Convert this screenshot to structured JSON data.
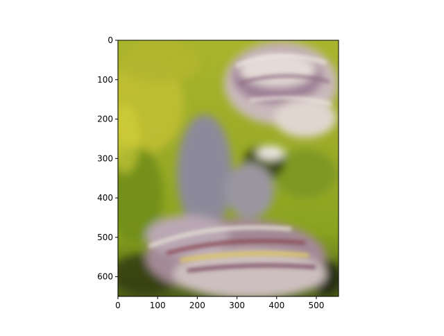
{
  "figure": {
    "background": "#ffffff",
    "description_colors": {
      "moss": "#9db02a",
      "moss_dark": "#5f7a12",
      "fungus_purple": "#9a7f92",
      "fungus_cream": "#e2d8cc",
      "fungus_band_yellow": "#d8c46a",
      "fungus_band_red": "#8a4a55",
      "axis": "#000000"
    }
  },
  "axes": {
    "x_ticks": [
      "0",
      "100",
      "200",
      "300",
      "400",
      "500"
    ],
    "x_values": [
      0,
      100,
      200,
      300,
      400,
      500
    ],
    "y_ticks": [
      "0",
      "100",
      "200",
      "300",
      "400",
      "500",
      "600"
    ],
    "y_values": [
      0,
      100,
      200,
      300,
      400,
      500,
      600
    ],
    "x_range": [
      0,
      556
    ],
    "y_range": [
      0,
      650
    ],
    "y_inverted": true
  }
}
